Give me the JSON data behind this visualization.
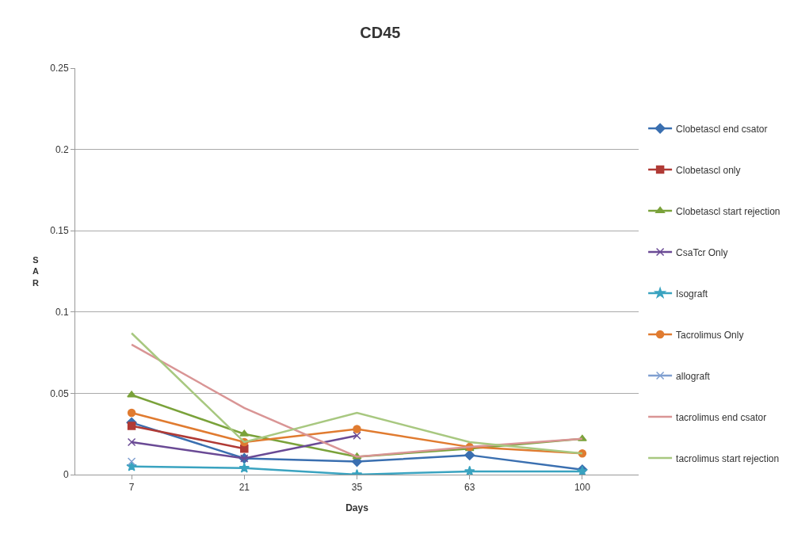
{
  "chart_data": {
    "type": "line",
    "title": "CD45",
    "xlabel": "Days",
    "ylabel": "SAR",
    "categories": [
      "7",
      "21",
      "35",
      "63",
      "100"
    ],
    "ylim": [
      0,
      0.25
    ],
    "yticks": [
      0,
      0.05,
      0.1,
      0.15,
      0.2,
      0.25
    ],
    "grid": "y",
    "legend": "right",
    "series": [
      {
        "name": "Clobetascl end csator",
        "color": "#3a6fb0",
        "marker": "diamond",
        "values": [
          0.032,
          0.01,
          0.008,
          0.012,
          0.003
        ]
      },
      {
        "name": "Clobetascl only",
        "color": "#b03a35",
        "marker": "square",
        "values": [
          0.03,
          0.016,
          null,
          null,
          null
        ]
      },
      {
        "name": "Clobetascl start rejection",
        "color": "#7aa23a",
        "marker": "triangle",
        "values": [
          0.049,
          0.025,
          0.011,
          0.016,
          0.022
        ]
      },
      {
        "name": "CsaTcr Only",
        "color": "#6a4a95",
        "marker": "cross",
        "values": [
          0.02,
          0.01,
          0.024,
          null,
          null
        ]
      },
      {
        "name": "Isograft",
        "color": "#3aa3c0",
        "marker": "star",
        "values": [
          0.005,
          0.004,
          0.0,
          0.002,
          0.002
        ]
      },
      {
        "name": "Tacrolimus Only",
        "color": "#e07b30",
        "marker": "circle",
        "values": [
          0.038,
          0.02,
          0.028,
          0.017,
          0.013
        ]
      },
      {
        "name": "allograft",
        "color": "#7f9fd0",
        "marker": "cross",
        "values": [
          0.008,
          null,
          null,
          null,
          null
        ]
      },
      {
        "name": "tacrolimus end csator",
        "color": "#d99595",
        "marker": "none",
        "values": [
          0.08,
          0.041,
          0.011,
          0.017,
          0.022
        ]
      },
      {
        "name": "tacrolimus start rejection",
        "color": "#a8c880",
        "marker": "none",
        "values": [
          0.087,
          0.02,
          0.038,
          0.02,
          0.013
        ]
      }
    ]
  }
}
